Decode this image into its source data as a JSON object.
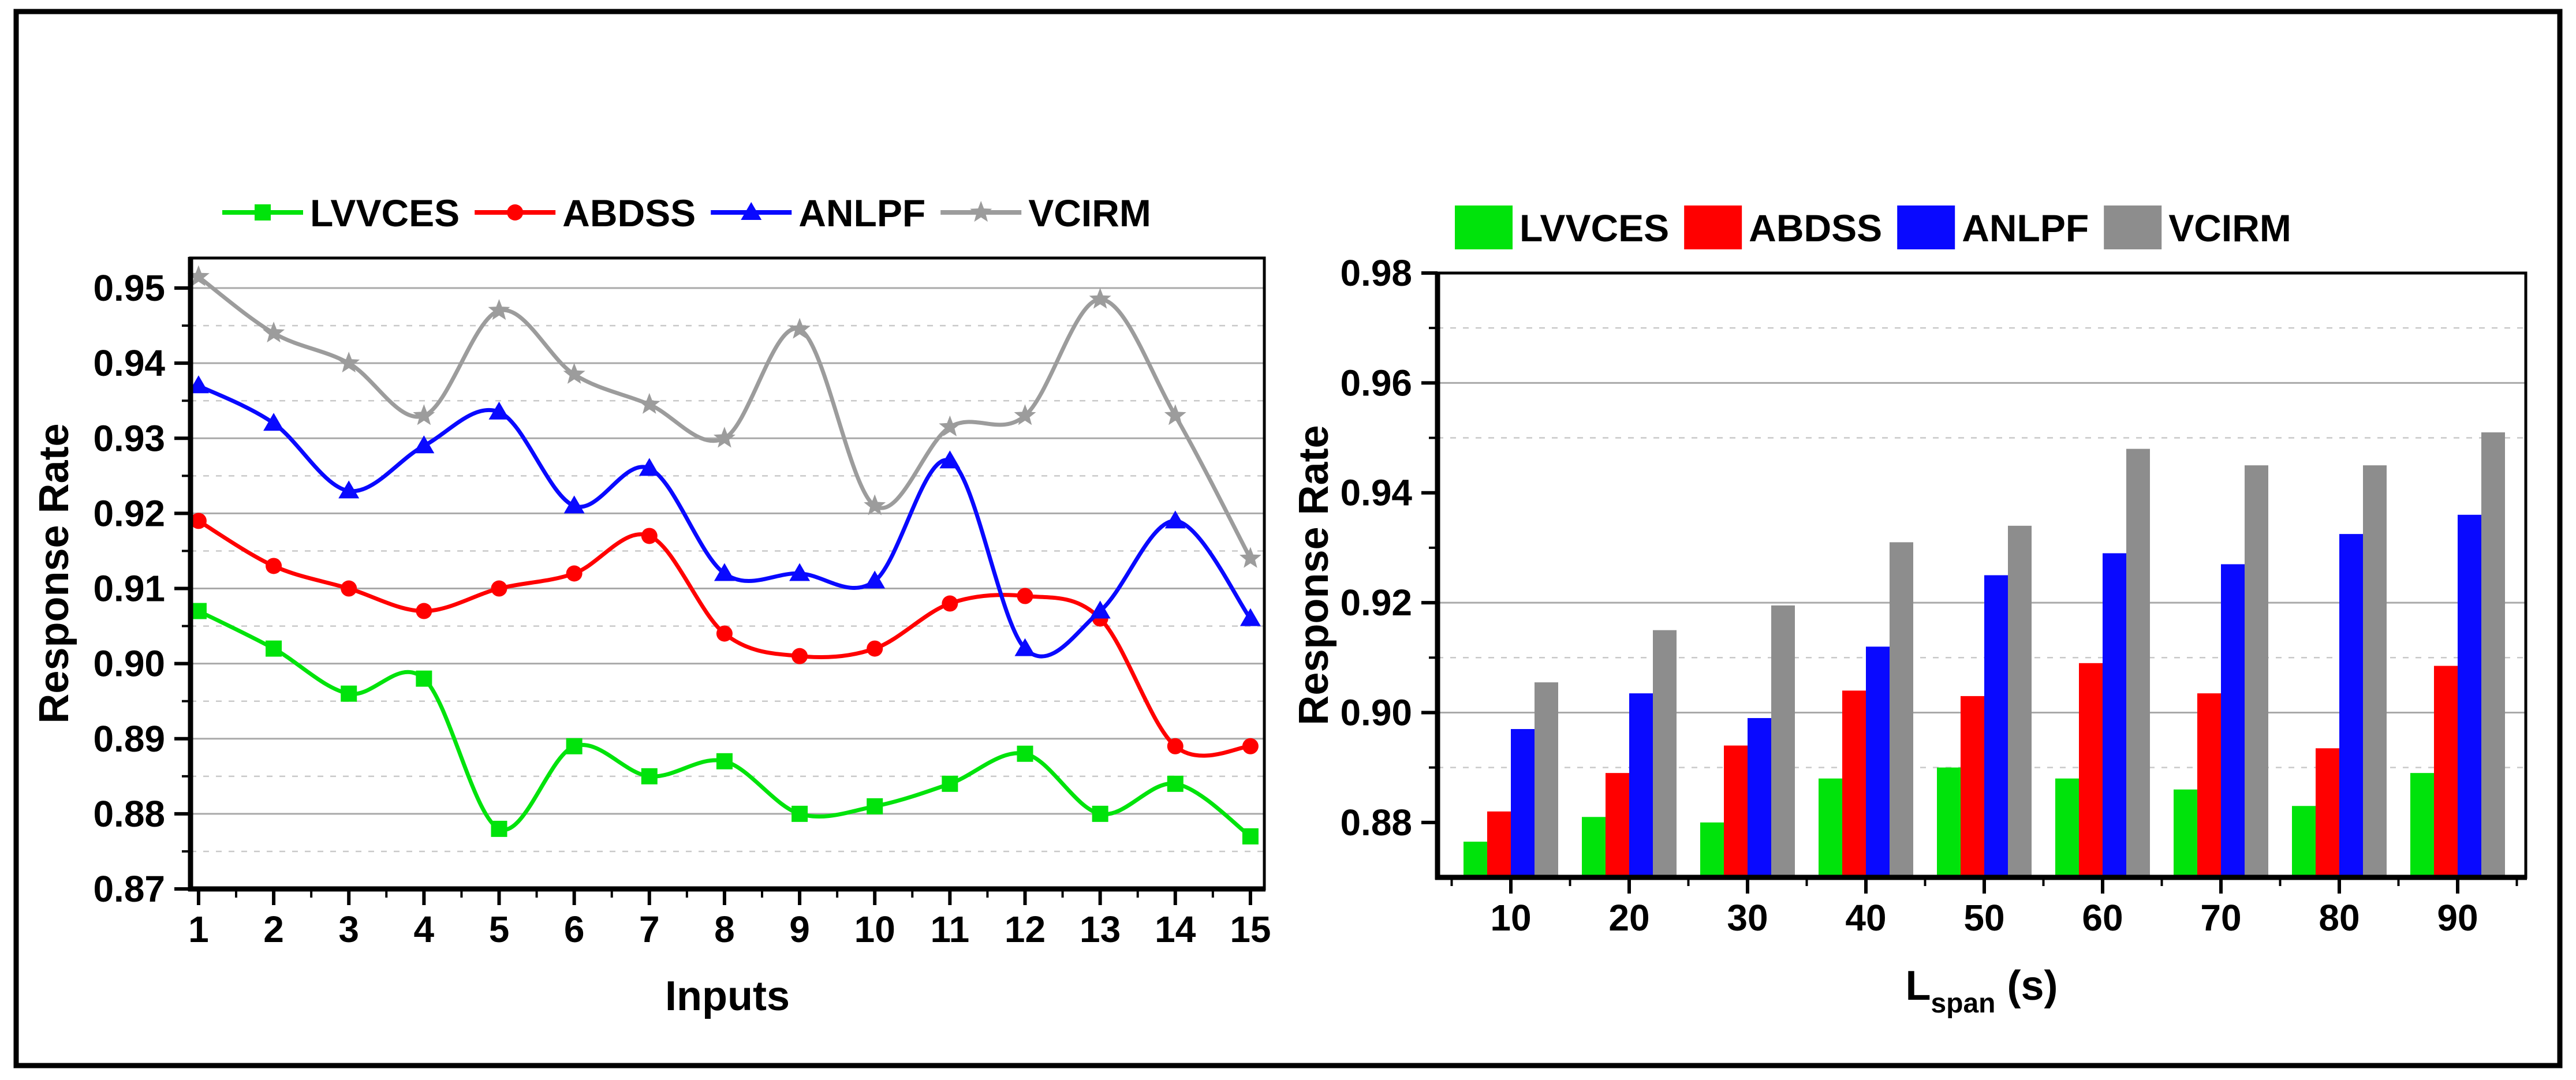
{
  "figure": {
    "background": "#ffffff",
    "frame_color": "#000000",
    "grid_major_color": "#a9a9a9",
    "grid_minor_color": "#c9c9c9"
  },
  "chart_data": [
    {
      "id": "response-rate-vs-inputs",
      "type": "line",
      "title": "",
      "xlabel": "Inputs",
      "ylabel": "Response Rate",
      "x": [
        1,
        2,
        3,
        4,
        5,
        6,
        7,
        8,
        9,
        10,
        11,
        12,
        13,
        14,
        15
      ],
      "x_tick_labels": [
        "1",
        "2",
        "3",
        "4",
        "5",
        "6",
        "7",
        "8",
        "9",
        "10",
        "11",
        "12",
        "13",
        "14",
        "15"
      ],
      "y_tick_labels": [
        "0.87",
        "0.88",
        "0.89",
        "0.90",
        "0.91",
        "0.92",
        "0.93",
        "0.94",
        "0.95"
      ],
      "ylim": [
        0.87,
        0.954
      ],
      "xlim": [
        0.893,
        15.185
      ],
      "grid": {
        "major_step": 0.01,
        "minor_step": 0.005
      },
      "legend_position": "top",
      "series": [
        {
          "name": "LVVCES",
          "color": "#00e30b",
          "marker": "square",
          "values": [
            0.907,
            0.902,
            0.896,
            0.898,
            0.878,
            0.889,
            0.885,
            0.887,
            0.88,
            0.881,
            0.884,
            0.888,
            0.88,
            0.884,
            0.877
          ]
        },
        {
          "name": "ABDSS",
          "color": "#ff0000",
          "marker": "circle",
          "values": [
            0.919,
            0.913,
            0.91,
            0.907,
            0.91,
            0.912,
            0.917,
            0.904,
            0.901,
            0.902,
            0.908,
            0.909,
            0.906,
            0.889,
            0.889
          ]
        },
        {
          "name": "ANLPF",
          "color": "#0909ff",
          "marker": "triangle",
          "values": [
            0.937,
            0.932,
            0.923,
            0.929,
            0.9335,
            0.921,
            0.926,
            0.912,
            0.912,
            0.911,
            0.927,
            0.902,
            0.907,
            0.919,
            0.906
          ]
        },
        {
          "name": "VCIRM",
          "color": "#9c9c9c",
          "marker": "star",
          "values": [
            0.9515,
            0.944,
            0.94,
            0.933,
            0.947,
            0.9385,
            0.9345,
            0.93,
            0.9445,
            0.921,
            0.9315,
            0.933,
            0.9485,
            0.933,
            0.914
          ]
        }
      ]
    },
    {
      "id": "response-rate-vs-lspan",
      "type": "bar",
      "title": "",
      "xlabel": {
        "main": "L",
        "sub": "span",
        "suffix": " (s)"
      },
      "ylabel": "Response Rate",
      "categories": [
        "10",
        "20",
        "30",
        "40",
        "50",
        "60",
        "70",
        "80",
        "90"
      ],
      "y_tick_labels": [
        "0.88",
        "0.90",
        "0.92",
        "0.94",
        "0.96",
        "0.98"
      ],
      "y_minor_ticks": [
        0.89,
        0.91,
        0.93,
        0.95,
        0.97
      ],
      "ylim": [
        0.87,
        0.98
      ],
      "gridlines": {
        "solid": [
          0.9,
          0.92,
          0.96
        ],
        "dashed": [
          0.89,
          0.91,
          0.95,
          0.97
        ]
      },
      "legend_position": "top",
      "series": [
        {
          "name": "LVVCES",
          "color": "#00e30b",
          "values": [
            0.8765,
            0.881,
            0.88,
            0.888,
            0.89,
            0.888,
            0.886,
            0.883,
            0.889
          ]
        },
        {
          "name": "ABDSS",
          "color": "#ff0000",
          "values": [
            0.882,
            0.889,
            0.894,
            0.904,
            0.903,
            0.909,
            0.9035,
            0.8935,
            0.9085
          ]
        },
        {
          "name": "ANLPF",
          "color": "#0909ff",
          "values": [
            0.897,
            0.9035,
            0.899,
            0.912,
            0.925,
            0.929,
            0.927,
            0.9325,
            0.936
          ]
        },
        {
          "name": "VCIRM",
          "color": "#8d8d8d",
          "values": [
            0.9055,
            0.915,
            0.9195,
            0.931,
            0.934,
            0.948,
            0.945,
            0.945,
            0.951
          ]
        }
      ]
    }
  ]
}
